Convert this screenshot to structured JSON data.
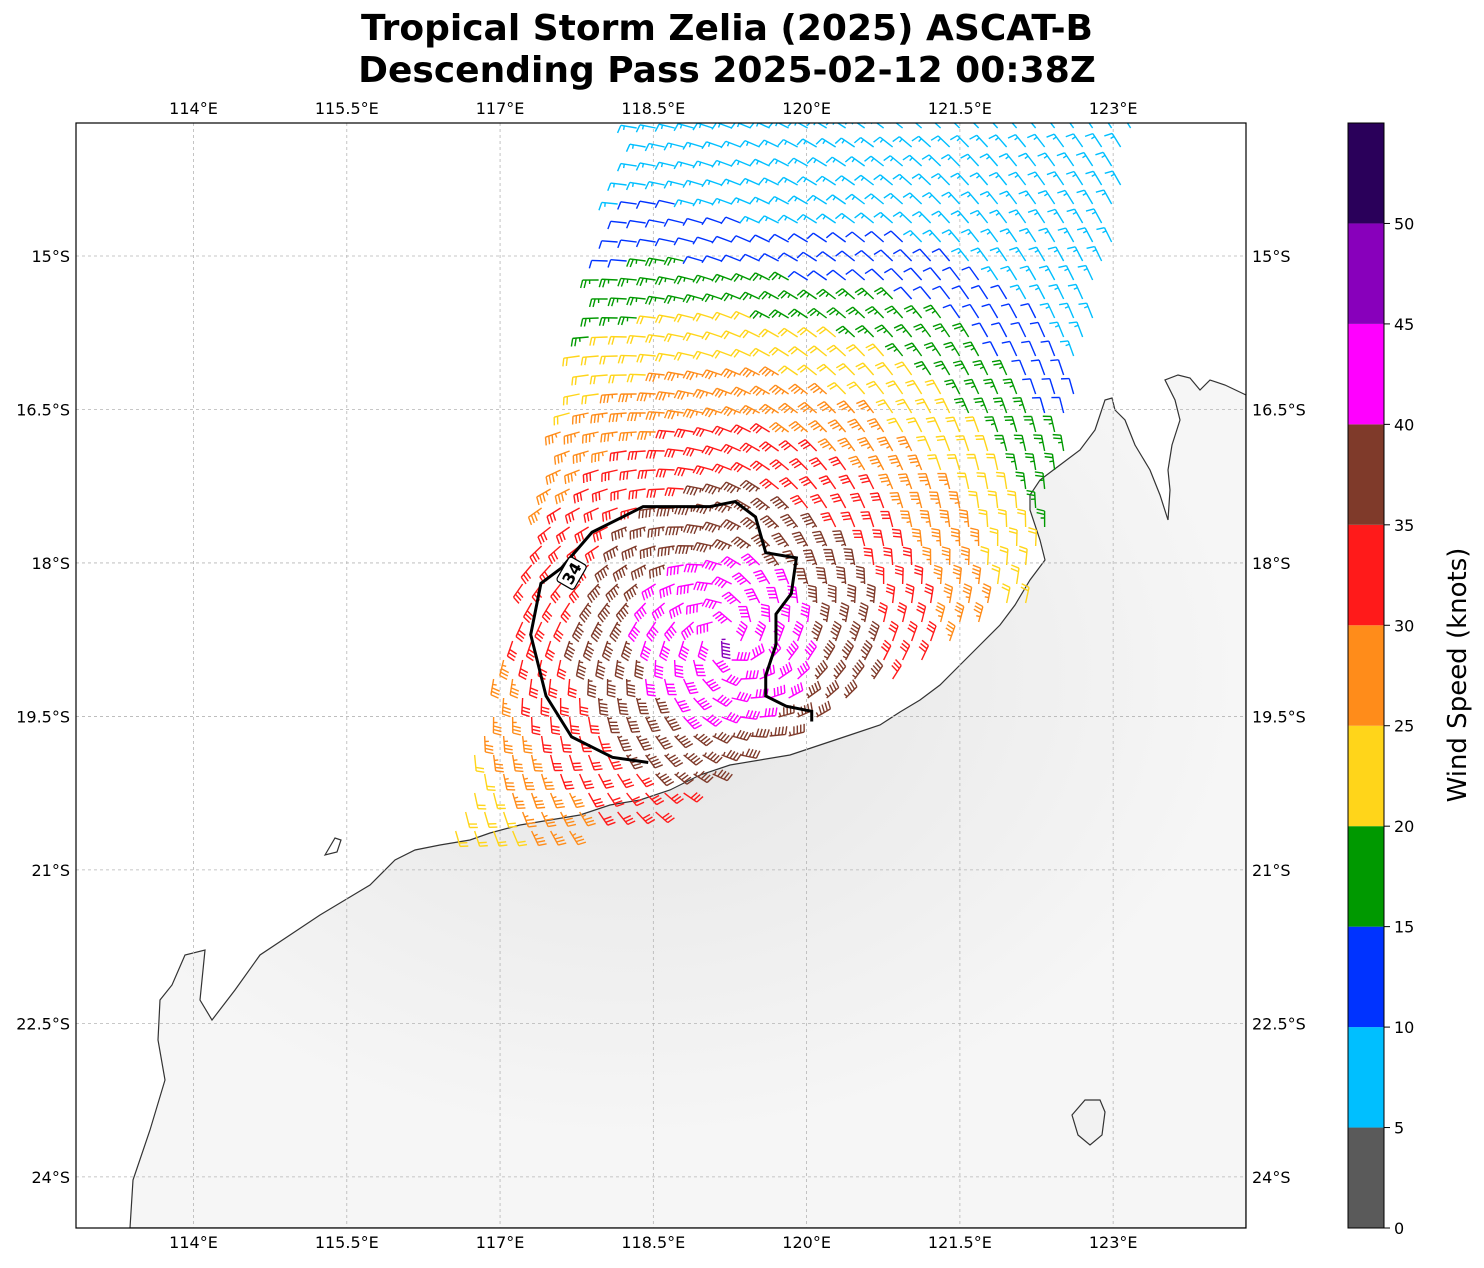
{
  "title": {
    "line1": "Tropical Storm Zelia (2025) ASCAT-B",
    "line2": "Descending Pass 2025-02-12 00:38Z"
  },
  "map": {
    "lon_range": [
      112.85,
      124.3
    ],
    "lat_range": [
      -24.5,
      -13.7
    ],
    "lon_ticks": [
      {
        "value": 114,
        "label": "114°E"
      },
      {
        "value": 115.5,
        "label": "115.5°E"
      },
      {
        "value": 117,
        "label": "117°E"
      },
      {
        "value": 118.5,
        "label": "118.5°E"
      },
      {
        "value": 120,
        "label": "120°E"
      },
      {
        "value": 121.5,
        "label": "121.5°E"
      },
      {
        "value": 123,
        "label": "123°E"
      }
    ],
    "lat_ticks": [
      {
        "value": -15,
        "label": "15°S"
      },
      {
        "value": -16.5,
        "label": "16.5°S"
      },
      {
        "value": -18,
        "label": "18°S"
      },
      {
        "value": -19.5,
        "label": "19.5°S"
      },
      {
        "value": -21,
        "label": "21°S"
      },
      {
        "value": -22.5,
        "label": "22.5°S"
      },
      {
        "value": -24,
        "label": "24°S"
      }
    ],
    "gridlines": true,
    "coastline_color": "#333333",
    "land_color": "#f4f4f4",
    "storm_center": {
      "lon": 119.2,
      "lat": -18.75
    },
    "contour": {
      "level_label": "34",
      "color": "#000000",
      "points": [
        [
          118.45,
          -19.95
        ],
        [
          118.1,
          -19.9
        ],
        [
          117.7,
          -19.7
        ],
        [
          117.45,
          -19.3
        ],
        [
          117.3,
          -18.7
        ],
        [
          117.4,
          -18.2
        ],
        [
          117.6,
          -18.05
        ],
        [
          117.9,
          -17.7
        ],
        [
          118.4,
          -17.45
        ],
        [
          119.05,
          -17.45
        ],
        [
          119.3,
          -17.4
        ],
        [
          119.5,
          -17.55
        ],
        [
          119.6,
          -17.9
        ],
        [
          119.9,
          -17.95
        ],
        [
          119.85,
          -18.3
        ],
        [
          119.7,
          -18.5
        ],
        [
          119.7,
          -18.8
        ],
        [
          119.6,
          -19.1
        ],
        [
          119.6,
          -19.3
        ],
        [
          119.8,
          -19.4
        ],
        [
          120.05,
          -19.45
        ],
        [
          120.05,
          -19.55
        ]
      ]
    }
  },
  "colorbar": {
    "label": "Wind Speed (knots)",
    "ticks": [
      "0",
      "5",
      "10",
      "15",
      "20",
      "25",
      "30",
      "35",
      "40",
      "45",
      "50"
    ],
    "colors": [
      "#5a5a5a",
      "#00bfff",
      "#0033ff",
      "#009900",
      "#ffd51a",
      "#ff8c1a",
      "#ff1a1a",
      "#7f3a2a",
      "#ff00ff",
      "#8800bb",
      "#2a005a"
    ]
  }
}
